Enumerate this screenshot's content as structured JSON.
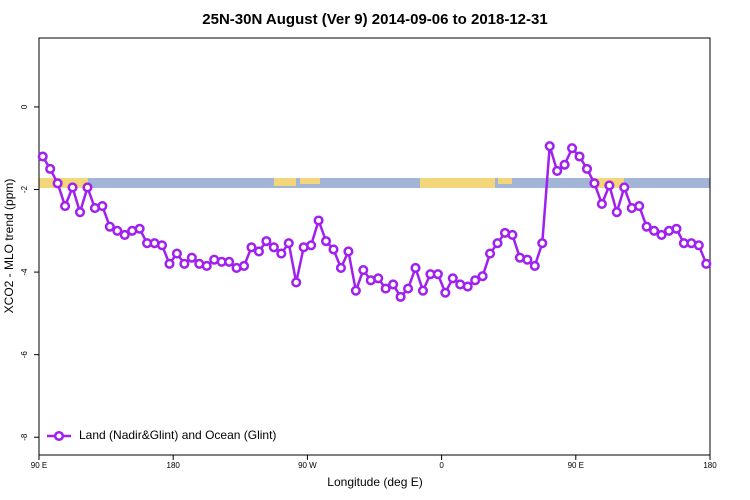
{
  "chart_data": {
    "type": "line",
    "title": "25N-30N August (Ver 9)   2014-09-06 to 2018-12-31",
    "x_label": "Longitude (deg E)",
    "y_label": "XCO2 - MLO trend (ppm)",
    "x": [
      92.5,
      97.5,
      102.5,
      107.5,
      112.5,
      117.5,
      122.5,
      127.5,
      132.5,
      137.5,
      142.5,
      147.5,
      152.5,
      157.5,
      162.5,
      167.5,
      172.5,
      177.5,
      182.5,
      187.5,
      192.5,
      197.5,
      202.5,
      207.5,
      212.5,
      217.5,
      222.5,
      227.5,
      232.5,
      237.5,
      242.5,
      247.5,
      252.5,
      257.5,
      262.5,
      267.5,
      272.5,
      277.5,
      282.5,
      287.5,
      292.5,
      297.5,
      302.5,
      307.5,
      312.5,
      317.5,
      322.5,
      327.5,
      332.5,
      337.5,
      342.5,
      347.5,
      352.5,
      357.5,
      362.5,
      367.5,
      372.5,
      377.5,
      382.5,
      387.5,
      392.5,
      397.5,
      402.5,
      407.5,
      412.5,
      417.5,
      422.5,
      427.5,
      432.5,
      437.5,
      442.5,
      447.5,
      452.5,
      457.5,
      462.5,
      467.5,
      472.5,
      477.5,
      482.5,
      487.5,
      492.5,
      497.5,
      502.5,
      507.5,
      512.5,
      517.5,
      522.5,
      527.5,
      532.5,
      537.5
    ],
    "series": [
      {
        "name": "Land (Nadir&Glint) and Ocean (Glint)",
        "color": "#a020f0",
        "values": [
          -1.2,
          -1.5,
          -1.85,
          -2.4,
          -1.95,
          -2.55,
          -1.95,
          -2.45,
          -2.4,
          -2.9,
          -3.0,
          -3.1,
          -3.0,
          -2.95,
          -3.3,
          -3.3,
          -3.35,
          -3.8,
          -3.55,
          -3.8,
          -3.65,
          -3.8,
          -3.85,
          -3.7,
          -3.75,
          -3.75,
          -3.9,
          -3.85,
          -3.4,
          -3.5,
          -3.25,
          -3.4,
          -3.55,
          -3.3,
          -4.25,
          -3.4,
          -3.35,
          -2.75,
          -3.25,
          -3.45,
          -3.9,
          -3.5,
          -4.45,
          -3.95,
          -4.2,
          -4.15,
          -4.4,
          -4.3,
          -4.6,
          -4.4,
          -3.9,
          -4.45,
          -4.05,
          -4.05,
          -4.5,
          -4.15,
          -4.3,
          -4.35,
          -4.2,
          -4.1,
          -3.55,
          -3.3,
          -3.05,
          -3.1,
          -3.65,
          -3.7,
          -3.85,
          -3.3,
          -0.95,
          -1.55,
          -1.4,
          -1.0,
          -1.2,
          -1.5,
          -1.85,
          -2.35,
          -1.9,
          -2.55,
          -1.95,
          -2.45,
          -2.4,
          -2.9,
          -3.0,
          -3.1,
          -3.0,
          -2.95,
          -3.3,
          -3.3,
          -3.35,
          -3.8
        ]
      }
    ],
    "xlim": [
      90,
      540
    ],
    "xticks": [
      {
        "value": 90,
        "label": "90 E"
      },
      180,
      {
        "value": 270,
        "label": "90 W"
      },
      {
        "value": 360,
        "label": "0"
      },
      {
        "value": 450,
        "label": "90 E"
      },
      {
        "value": 540,
        "label": "180"
      }
    ],
    "ylim": [
      -8.43,
      1.67
    ],
    "yticks": [
      0,
      -2,
      -4,
      -6,
      -8
    ],
    "legend": "bottom-left"
  }
}
